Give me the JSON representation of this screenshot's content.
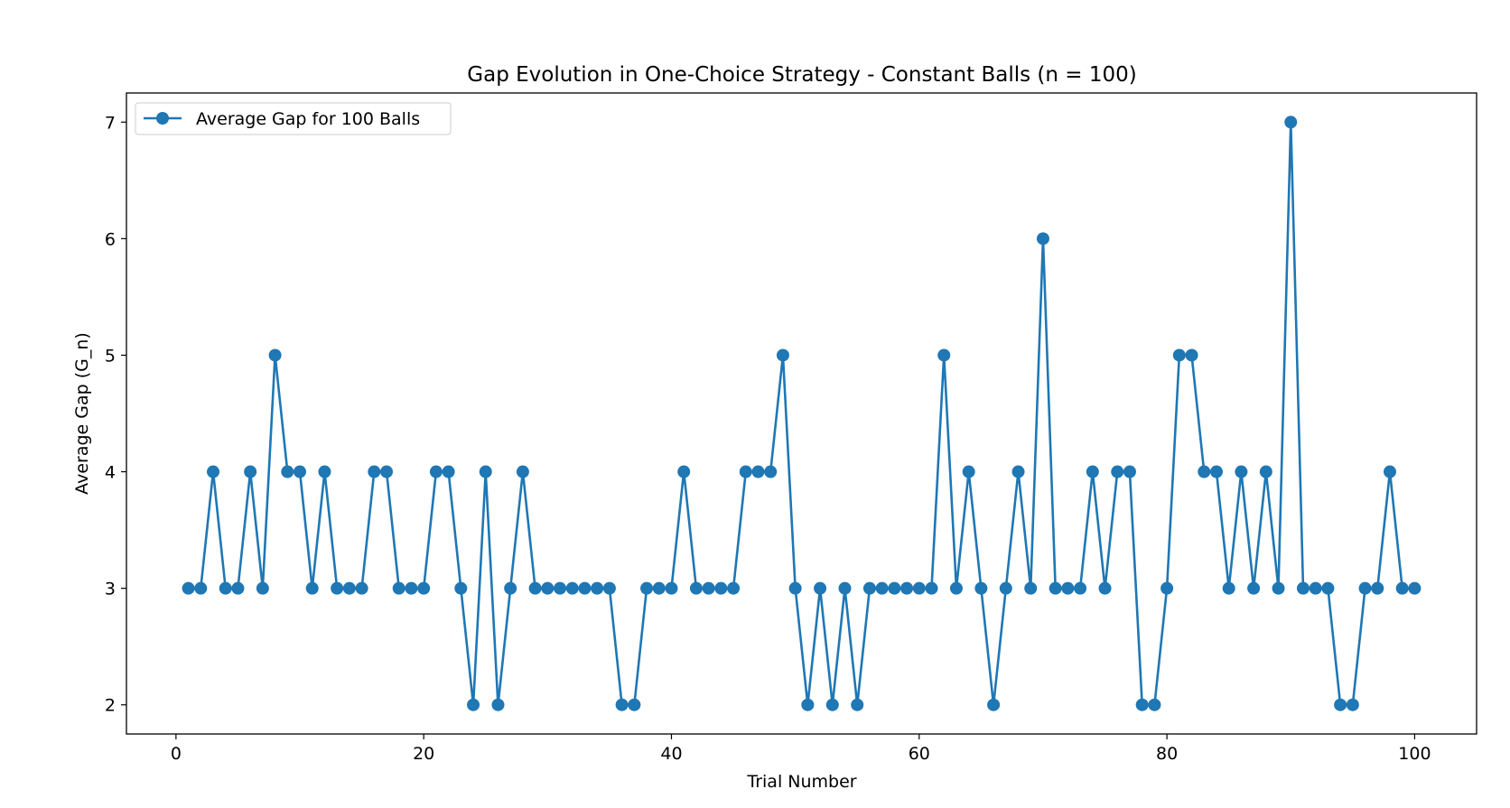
{
  "chart_data": {
    "type": "line",
    "title": "Gap Evolution in One-Choice Strategy - Constant Balls (n = 100)",
    "xlabel": "Trial Number",
    "ylabel": "Average Gap (G_n)",
    "xlim": [
      -4,
      105
    ],
    "ylim": [
      1.75,
      7.25
    ],
    "xticks": [
      0,
      20,
      40,
      60,
      80,
      100
    ],
    "yticks": [
      2,
      3,
      4,
      5,
      6,
      7
    ],
    "grid": false,
    "legend_position": "upper-left",
    "color": "#1f77b4",
    "series": [
      {
        "name": "Average Gap for 100 Balls",
        "x": [
          1,
          2,
          3,
          4,
          5,
          6,
          7,
          8,
          9,
          10,
          11,
          12,
          13,
          14,
          15,
          16,
          17,
          18,
          19,
          20,
          21,
          22,
          23,
          24,
          25,
          26,
          27,
          28,
          29,
          30,
          31,
          32,
          33,
          34,
          35,
          36,
          37,
          38,
          39,
          40,
          41,
          42,
          43,
          44,
          45,
          46,
          47,
          48,
          49,
          50,
          51,
          52,
          53,
          54,
          55,
          56,
          57,
          58,
          59,
          60,
          61,
          62,
          63,
          64,
          65,
          66,
          67,
          68,
          69,
          70,
          71,
          72,
          73,
          74,
          75,
          76,
          77,
          78,
          79,
          80,
          81,
          82,
          83,
          84,
          85,
          86,
          87,
          88,
          89,
          90,
          91,
          92,
          93,
          94,
          95,
          96,
          97,
          98,
          99,
          100
        ],
        "values": [
          3,
          3,
          4,
          3,
          3,
          4,
          3,
          5,
          4,
          4,
          3,
          4,
          3,
          3,
          3,
          4,
          4,
          3,
          3,
          3,
          4,
          4,
          3,
          2,
          4,
          2,
          3,
          4,
          3,
          3,
          3,
          3,
          3,
          3,
          3,
          2,
          2,
          3,
          3,
          3,
          4,
          3,
          3,
          3,
          3,
          4,
          4,
          4,
          5,
          3,
          2,
          3,
          2,
          3,
          2,
          3,
          3,
          3,
          3,
          3,
          3,
          5,
          3,
          4,
          3,
          2,
          3,
          4,
          3,
          6,
          3,
          3,
          3,
          4,
          3,
          4,
          4,
          2,
          2,
          3,
          5,
          5,
          4,
          4,
          3,
          4,
          3,
          4,
          3,
          7,
          3,
          3,
          3,
          2,
          2,
          3,
          3,
          4,
          3,
          3
        ]
      }
    ]
  }
}
